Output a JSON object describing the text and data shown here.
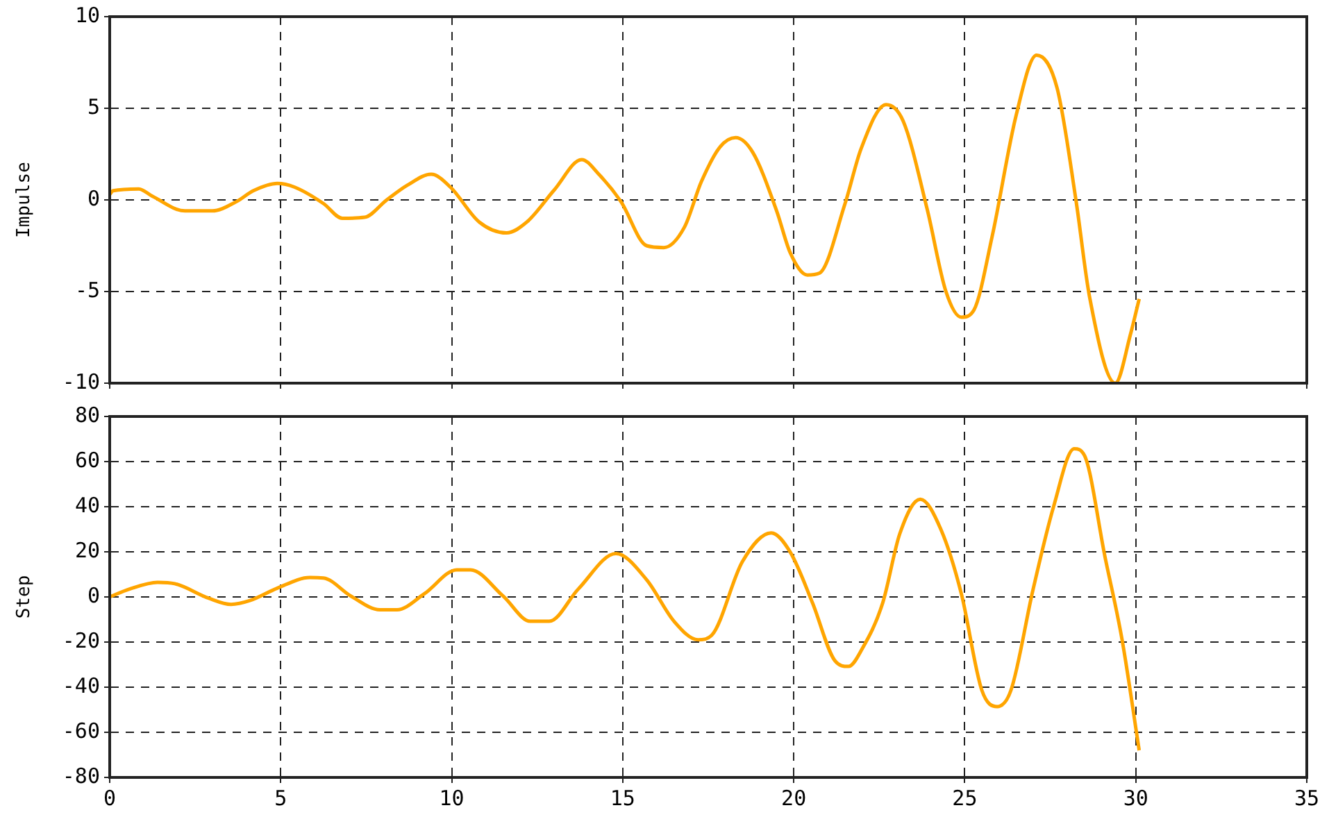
{
  "chart_data": [
    {
      "type": "line",
      "ylabel": "Impulse",
      "color": "#ffa500",
      "grid": true,
      "tick_labels": "y",
      "xlim": [
        0,
        35
      ],
      "xticks": [
        0,
        5,
        10,
        15,
        20,
        25,
        30,
        35
      ],
      "ylim": [
        -10,
        10
      ],
      "yticks": [
        -10,
        -5,
        0,
        5,
        10
      ],
      "x": [
        0,
        0.1,
        0.85,
        1.25,
        2.2,
        3.0,
        3.7,
        4.2,
        4.9,
        5.4,
        6.25,
        6.8,
        7.45,
        8.1,
        8.7,
        9.4,
        9.96,
        10.8,
        11.6,
        12.2,
        13.0,
        13.8,
        14.3,
        14.95,
        15.7,
        16.2,
        16.8,
        17.3,
        17.85,
        18.3,
        18.8,
        19.5,
        19.9,
        20.4,
        20.75,
        21.5,
        21.97,
        22.7,
        23.2,
        23.9,
        24.45,
        24.9,
        25.27,
        25.8,
        26.5,
        27.1,
        27.7,
        28.25,
        28.65,
        29.4,
        29.85,
        30.1
      ],
      "values": [
        0.3,
        0.5,
        0.6,
        0.2,
        -0.6,
        -0.6,
        -0.1,
        0.5,
        0.9,
        0.7,
        -0.2,
        -1.0,
        -0.95,
        0,
        0.8,
        1.4,
        0.7,
        -1.2,
        -1.8,
        -1.2,
        0.55,
        2.2,
        1.4,
        -0.1,
        -2.5,
        -2.6,
        -1.5,
        1.0,
        2.9,
        3.4,
        2.6,
        -0.6,
        -2.9,
        -4.1,
        -4.0,
        -0.2,
        2.8,
        5.2,
        4.3,
        -0.5,
        -5.0,
        -6.4,
        -6.0,
        -2.0,
        4.6,
        7.9,
        6.1,
        0,
        -5.3,
        -10,
        -7.3,
        -5.4
      ]
    },
    {
      "type": "line",
      "ylabel": "Step",
      "color": "#ffa500",
      "grid": true,
      "xlim": [
        0,
        35
      ],
      "xticks": [
        0,
        5,
        10,
        15,
        20,
        25,
        30,
        35
      ],
      "ylim": [
        -80,
        80
      ],
      "yticks": [
        -80,
        -60,
        -40,
        -20,
        0,
        20,
        40,
        60,
        80
      ],
      "x": [
        0,
        0.58,
        1.4,
        1.9,
        2.9,
        3.55,
        4.1,
        4.9,
        5.85,
        6.25,
        7.05,
        7.9,
        8.4,
        9.2,
        10.15,
        10.55,
        11.5,
        12.3,
        12.85,
        13.7,
        14.8,
        15.7,
        16.5,
        17.2,
        17.6,
        18.5,
        19.34,
        19.9,
        20.55,
        21.2,
        21.6,
        22.0,
        22.6,
        23.1,
        23.7,
        24.3,
        24.9,
        25.5,
        25.95,
        26.35,
        27.0,
        27.6,
        28.2,
        28.5,
        29.1,
        29.6,
        30.1
      ],
      "values": [
        0,
        3.5,
        6.5,
        5.9,
        -0.6,
        -3.3,
        -1.6,
        3.9,
        8.6,
        8.4,
        0.4,
        -5.7,
        -5.7,
        1.4,
        12,
        12,
        0.4,
        -10.8,
        -10.8,
        3.5,
        19.2,
        7.6,
        -10.8,
        -19,
        -17,
        15.7,
        28.4,
        19.8,
        -2.7,
        -28.2,
        -30.8,
        -23,
        -2.7,
        28,
        43.3,
        30,
        1.4,
        -41.4,
        -48.6,
        -41.4,
        3.5,
        40.2,
        65.7,
        62.7,
        17.8,
        -19,
        -68
      ]
    }
  ]
}
